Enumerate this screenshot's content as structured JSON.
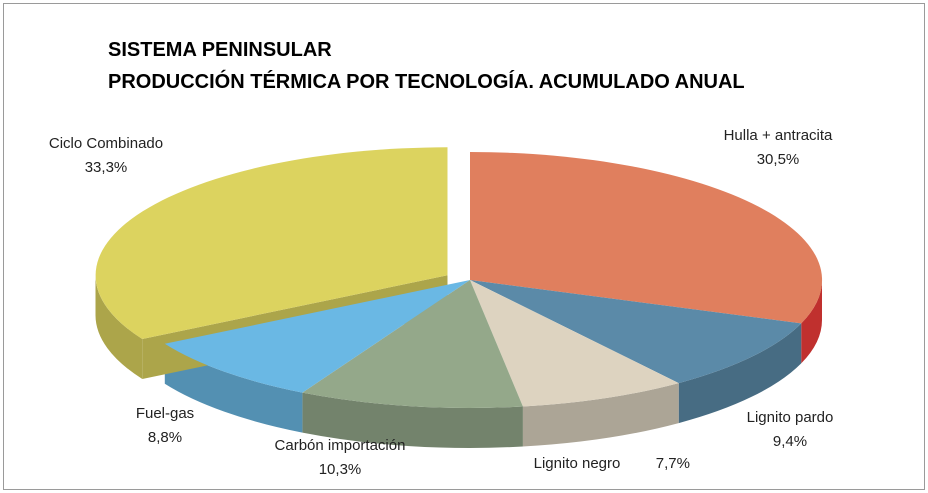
{
  "chart_data": {
    "type": "pie3d",
    "title": "SISTEMA PENINSULAR",
    "subtitle": "PRODUCCIÓN TÉRMICA POR TECNOLOGÍA. ACUMULADO ANUAL",
    "categories": [
      "Hulla + antracita",
      "Lignito pardo",
      "Lignito negro",
      "Carbón importación",
      "Fuel-gas",
      "Ciclo Combinado"
    ],
    "values": [
      30.5,
      9.4,
      7.7,
      10.3,
      8.8,
      33.3
    ],
    "value_labels": [
      "30,5%",
      "9,4%",
      "7,7%",
      "10,3%",
      "8,8%",
      "33,3%"
    ],
    "colors": [
      "#e07f5e",
      "#5b8aa8",
      "#ddd3c0",
      "#94a88a",
      "#6ab8e4",
      "#dcd35f"
    ],
    "exploded": [
      "Ciclo Combinado"
    ]
  }
}
